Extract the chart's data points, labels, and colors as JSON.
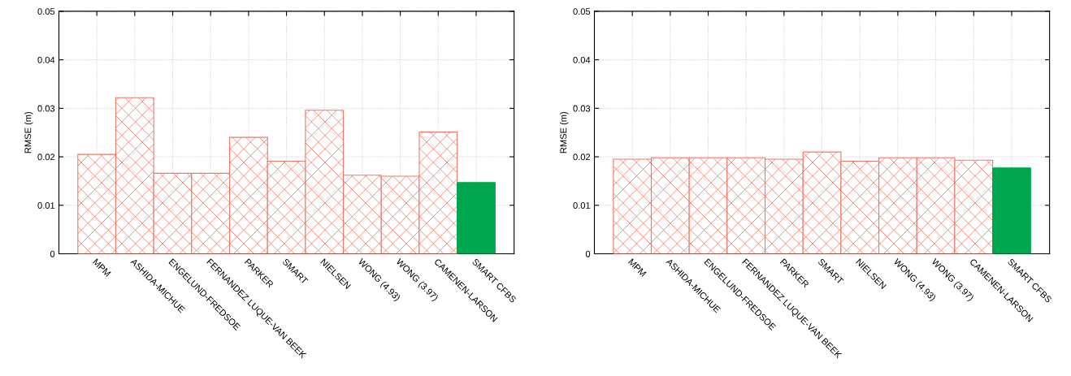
{
  "chart_data": [
    {
      "type": "bar",
      "ylabel": "RMSE (m)",
      "categories": [
        "MPM",
        "ASHIDA-MICHUE",
        "ENGELUND-FREDSOE",
        "FERNANDEZ LUQUE-VAN BEEK",
        "PARKER",
        "SMART",
        "NIELSEN",
        "WONG (4.93)",
        "WONG (3.97)",
        "CAMENEN-LARSON",
        "SMART CFBS"
      ],
      "values": [
        0.0205,
        0.0322,
        0.0166,
        0.0166,
        0.024,
        0.0191,
        0.0296,
        0.0162,
        0.016,
        0.0251,
        0.0147
      ],
      "colors": [
        "#f07868",
        "#f07868",
        "#f07868",
        "#f07868",
        "#f07868",
        "#f07868",
        "#f07868",
        "#f07868",
        "#f07868",
        "#f07868",
        "#00a54f"
      ],
      "ylim": [
        0,
        0.05
      ],
      "yticks": [
        0,
        0.01,
        0.02,
        0.03,
        0.04,
        0.05
      ],
      "grid": true
    },
    {
      "type": "bar",
      "ylabel": "RMSE (m)",
      "categories": [
        "MPM",
        "ASHIDA-MICHUE",
        "ENGELUND-FREDSOE",
        "FERNANDEZ LUQUE-VAN BEEK",
        "PARKER",
        "SMART",
        "NIELSEN",
        "WONG (4.93)",
        "WONG (3.97)",
        "CAMENEN-LARSON",
        "SMART CFBS"
      ],
      "values": [
        0.0195,
        0.0198,
        0.0198,
        0.0198,
        0.0195,
        0.021,
        0.0191,
        0.0198,
        0.0198,
        0.0193,
        0.0177
      ],
      "colors": [
        "#f07868",
        "#f07868",
        "#f07868",
        "#f07868",
        "#f07868",
        "#f07868",
        "#f07868",
        "#f07868",
        "#f07868",
        "#f07868",
        "#00a54f"
      ],
      "ylim": [
        0,
        0.05
      ],
      "yticks": [
        0,
        0.01,
        0.02,
        0.03,
        0.04,
        0.05
      ],
      "grid": true
    }
  ]
}
